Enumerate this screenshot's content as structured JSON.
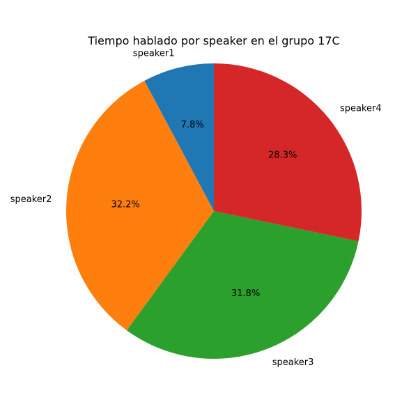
{
  "chart_data": {
    "type": "pie",
    "title": "Tiempo hablado por speaker en el grupo 17C",
    "categories": [
      "speaker1",
      "speaker2",
      "speaker3",
      "speaker4"
    ],
    "values": [
      7.8,
      32.2,
      31.8,
      28.3
    ],
    "percent_labels": [
      "7.8%",
      "32.2%",
      "31.8%",
      "28.3%"
    ],
    "colors": [
      "#1f77b4",
      "#ff7f0e",
      "#2ca02c",
      "#d62728"
    ],
    "start_angle_deg": 90,
    "direction": "counterclockwise"
  }
}
